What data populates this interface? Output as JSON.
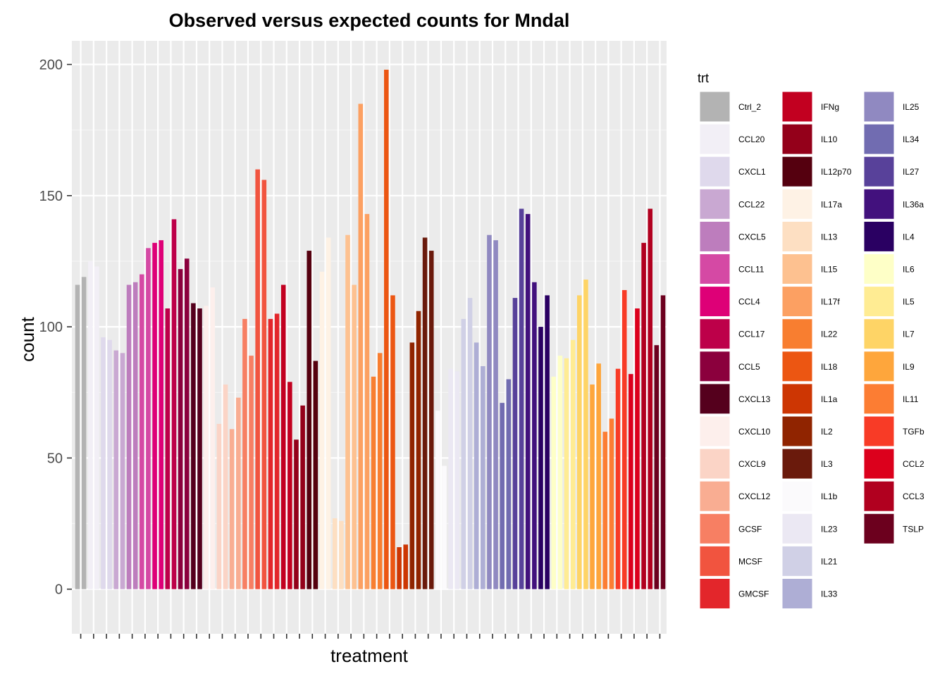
{
  "chart_data": {
    "type": "bar",
    "title": "Observed versus expected counts for Mndal",
    "xlabel": "treatment",
    "ylabel": "count",
    "ylim": [
      -17,
      209
    ],
    "yticks": [
      0,
      50,
      100,
      150,
      200
    ],
    "grid": true,
    "legend": {
      "title": "trt",
      "placement": "right",
      "columns": 3,
      "entries": [
        {
          "name": "Ctrl_2",
          "color": "#B3B3B3"
        },
        {
          "name": "CCL20",
          "color": "#F2EFF6"
        },
        {
          "name": "CXCL1",
          "color": "#DFD9EC"
        },
        {
          "name": "CCL22",
          "color": "#C9A8D2"
        },
        {
          "name": "CXCL5",
          "color": "#BD7DBD"
        },
        {
          "name": "CCL11",
          "color": "#D549A4"
        },
        {
          "name": "CCL4",
          "color": "#DE0077"
        },
        {
          "name": "CCL17",
          "color": "#BD0049"
        },
        {
          "name": "CCL5",
          "color": "#8B003D"
        },
        {
          "name": "CXCL13",
          "color": "#55001D"
        },
        {
          "name": "CXCL10",
          "color": "#FDEFEC"
        },
        {
          "name": "CXCL9",
          "color": "#FBD4C6"
        },
        {
          "name": "CXCL12",
          "color": "#F9AD92"
        },
        {
          "name": "GCSF",
          "color": "#F77F63"
        },
        {
          "name": "MCSF",
          "color": "#F1543F"
        },
        {
          "name": "GMCSF",
          "color": "#E3262B"
        },
        {
          "name": "IFNg",
          "color": "#C20020"
        },
        {
          "name": "IL10",
          "color": "#94001A"
        },
        {
          "name": "IL12p70",
          "color": "#55000F"
        },
        {
          "name": "IL17a",
          "color": "#FEF2E5"
        },
        {
          "name": "IL13",
          "color": "#FDDFC2"
        },
        {
          "name": "IL15",
          "color": "#FDC190"
        },
        {
          "name": "IL17f",
          "color": "#FCA062"
        },
        {
          "name": "IL22",
          "color": "#F87E30"
        },
        {
          "name": "IL18",
          "color": "#EC5612"
        },
        {
          "name": "IL1a",
          "color": "#CD3603"
        },
        {
          "name": "IL2",
          "color": "#902400"
        },
        {
          "name": "IL3",
          "color": "#6A1A0C"
        },
        {
          "name": "IL1b",
          "color": "#FBFAFC"
        },
        {
          "name": "IL23",
          "color": "#EBE8F3"
        },
        {
          "name": "IL21",
          "color": "#D0D0E6"
        },
        {
          "name": "IL33",
          "color": "#AEAED5"
        },
        {
          "name": "IL25",
          "color": "#9089C1"
        },
        {
          "name": "IL34",
          "color": "#716CB1"
        },
        {
          "name": "IL27",
          "color": "#58419A"
        },
        {
          "name": "IL36a",
          "color": "#42117D"
        },
        {
          "name": "IL4",
          "color": "#2A0062"
        },
        {
          "name": "IL6",
          "color": "#FEFFC7"
        },
        {
          "name": "IL5",
          "color": "#FFEC93"
        },
        {
          "name": "IL7",
          "color": "#FED466"
        },
        {
          "name": "IL9",
          "color": "#FEA63C"
        },
        {
          "name": "IL11",
          "color": "#FC7D33"
        },
        {
          "name": "TGFb",
          "color": "#F83B26"
        },
        {
          "name": "CCL2",
          "color": "#DC001C"
        },
        {
          "name": "CCL3",
          "color": "#B1001F"
        },
        {
          "name": "TSLP",
          "color": "#6C001E"
        }
      ]
    },
    "series_note_free": true,
    "bars": [
      {
        "trt": "Ctrl_2",
        "values": [
          116,
          119
        ]
      },
      {
        "trt": "CCL20",
        "values": [
          125,
          123
        ]
      },
      {
        "trt": "CXCL1",
        "values": [
          96,
          95
        ]
      },
      {
        "trt": "CCL22",
        "values": [
          91,
          90
        ]
      },
      {
        "trt": "CXCL5",
        "values": [
          116,
          117
        ]
      },
      {
        "trt": "CCL11",
        "values": [
          120,
          130
        ]
      },
      {
        "trt": "CCL4",
        "values": [
          132,
          133
        ]
      },
      {
        "trt": "CCL17",
        "values": [
          107,
          141
        ]
      },
      {
        "trt": "CCL5",
        "values": [
          122,
          126
        ]
      },
      {
        "trt": "CXCL13",
        "values": [
          109,
          107
        ]
      },
      {
        "trt": "CXCL10",
        "values": [
          108,
          115
        ]
      },
      {
        "trt": "CXCL9",
        "values": [
          63,
          78
        ]
      },
      {
        "trt": "CXCL12",
        "values": [
          61,
          73
        ]
      },
      {
        "trt": "GCSF",
        "values": [
          103,
          89
        ]
      },
      {
        "trt": "MCSF",
        "values": [
          160,
          156
        ]
      },
      {
        "trt": "GMCSF",
        "values": [
          103,
          105
        ]
      },
      {
        "trt": "IFNg",
        "values": [
          116,
          79
        ]
      },
      {
        "trt": "IL10",
        "values": [
          57,
          70
        ]
      },
      {
        "trt": "IL12p70",
        "values": [
          129,
          87
        ]
      },
      {
        "trt": "IL17a",
        "values": [
          121,
          134
        ]
      },
      {
        "trt": "IL13",
        "values": [
          27,
          26
        ]
      },
      {
        "trt": "IL15",
        "values": [
          135,
          116
        ]
      },
      {
        "trt": "IL17f",
        "values": [
          185,
          143
        ]
      },
      {
        "trt": "IL22",
        "values": [
          81,
          90
        ]
      },
      {
        "trt": "IL18",
        "values": [
          198,
          112
        ]
      },
      {
        "trt": "IL1a",
        "values": [
          16,
          17
        ]
      },
      {
        "trt": "IL2",
        "values": [
          94,
          106
        ]
      },
      {
        "trt": "IL3",
        "values": [
          134,
          129
        ]
      },
      {
        "trt": "IL1b",
        "values": [
          68,
          47
        ]
      },
      {
        "trt": "IL23",
        "values": [
          84,
          83
        ]
      },
      {
        "trt": "IL21",
        "values": [
          103,
          111
        ]
      },
      {
        "trt": "IL33",
        "values": [
          94,
          85
        ]
      },
      {
        "trt": "IL25",
        "values": [
          135,
          133
        ]
      },
      {
        "trt": "IL34",
        "values": [
          71,
          80
        ]
      },
      {
        "trt": "IL27",
        "values": [
          111,
          145
        ]
      },
      {
        "trt": "IL36a",
        "values": [
          143,
          117
        ]
      },
      {
        "trt": "IL4",
        "values": [
          100,
          112
        ]
      },
      {
        "trt": "IL6",
        "values": [
          81,
          89
        ]
      },
      {
        "trt": "IL5",
        "values": [
          88,
          95
        ]
      },
      {
        "trt": "IL7",
        "values": [
          112,
          118
        ]
      },
      {
        "trt": "IL9",
        "values": [
          78,
          86
        ]
      },
      {
        "trt": "IL11",
        "values": [
          60,
          65
        ]
      },
      {
        "trt": "TGFb",
        "values": [
          84,
          114
        ]
      },
      {
        "trt": "CCL2",
        "values": [
          82,
          107
        ]
      },
      {
        "trt": "CCL3",
        "values": [
          132,
          145
        ]
      },
      {
        "trt": "TSLP",
        "values": [
          93,
          112
        ]
      }
    ]
  }
}
